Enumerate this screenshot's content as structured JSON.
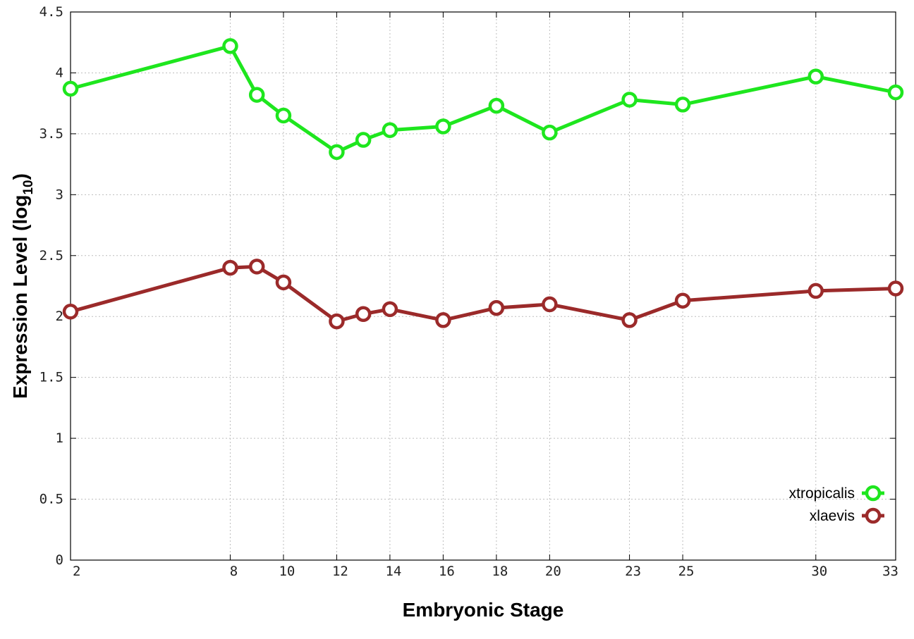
{
  "chart_data": {
    "type": "line",
    "xlabel": "Embryonic Stage",
    "ylabel": "Expression Level (log",
    "ylabel_subscript": "10",
    "ylabel_close": ")",
    "x_ticks": [
      "2",
      "8",
      "10",
      "12",
      "14",
      "16",
      "18",
      "20",
      "23",
      "25",
      "30",
      "33"
    ],
    "y_ticks": [
      "0",
      "0.5",
      "1",
      "1.5",
      "2",
      "2.5",
      "3",
      "3.5",
      "4",
      "4.5"
    ],
    "xlim": [
      2,
      33
    ],
    "ylim": [
      0,
      4.5
    ],
    "grid": true,
    "legend_position": "bottom-right",
    "series": [
      {
        "name": "xtropicalis",
        "color": "#1ee61e",
        "marker": "open-circle",
        "x": [
          2,
          8,
          9,
          10,
          12,
          13,
          14,
          16,
          18,
          20,
          23,
          25,
          30,
          33
        ],
        "values": [
          3.87,
          4.22,
          3.82,
          3.65,
          3.35,
          3.45,
          3.53,
          3.56,
          3.73,
          3.51,
          3.78,
          3.74,
          3.97,
          3.84
        ]
      },
      {
        "name": "xlaevis",
        "color": "#9b2a2a",
        "marker": "open-circle",
        "x": [
          2,
          8,
          9,
          10,
          12,
          13,
          14,
          16,
          18,
          20,
          23,
          25,
          30,
          33
        ],
        "values": [
          2.04,
          2.4,
          2.41,
          2.28,
          1.96,
          2.02,
          2.06,
          1.97,
          2.07,
          2.1,
          1.97,
          2.13,
          2.21,
          2.23
        ]
      }
    ]
  }
}
